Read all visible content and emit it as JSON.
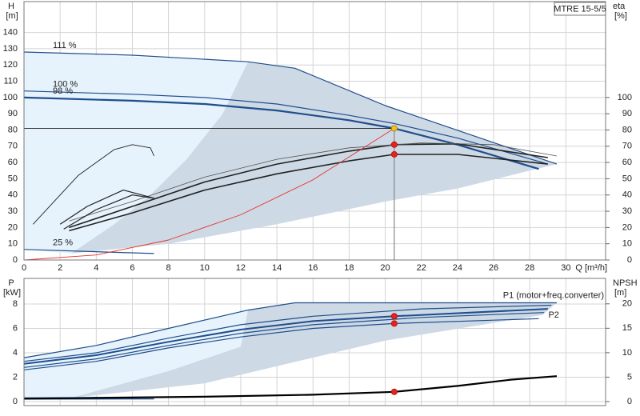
{
  "chart_data": [
    {
      "type": "line",
      "ylabel": "H",
      "yunit": "[m]",
      "y2label": "eta",
      "y2unit": "[%]",
      "xlabel": "Q [m³/h]",
      "box_label": "MTRE 15-5/5",
      "xlim": [
        0,
        32.2
      ],
      "xticks": [
        0,
        2,
        4,
        6,
        8,
        10,
        12,
        14,
        16,
        18,
        20,
        22,
        24,
        26,
        28,
        30
      ],
      "x_tick_labels": true,
      "ylim": [
        0,
        159
      ],
      "yticks": [
        0,
        10,
        20,
        30,
        40,
        50,
        60,
        70,
        80,
        90,
        100,
        110,
        120,
        130,
        140
      ],
      "y2lim": [
        0,
        159
      ],
      "y2ticks": [
        0,
        10,
        20,
        30,
        40,
        50,
        60,
        70,
        80,
        90,
        100
      ],
      "grid": true,
      "series": [
        {
          "style": "polygon",
          "color": "#e6f2fc",
          "x": [
            0,
            12.4,
            11,
            9,
            7,
            5,
            2.6,
            0
          ],
          "values": [
            128,
            122,
            90,
            62,
            40,
            22,
            4,
            6.5
          ]
        },
        {
          "style": "polygon",
          "color": "#cdd9e5",
          "x": [
            2.6,
            5,
            7,
            9,
            11,
            12.4,
            15,
            20,
            25,
            29.5,
            28,
            24,
            20,
            14,
            8
          ],
          "values": [
            4,
            22,
            40,
            62,
            90,
            122,
            118,
            95,
            76,
            59,
            55,
            44,
            36,
            22,
            10
          ]
        },
        {
          "name": "111 %",
          "label_at": "start",
          "style": "line",
          "color": "#1f4e8c",
          "width": 1.2,
          "x": [
            0,
            6,
            12.4,
            15,
            20,
            25,
            29.5
          ],
          "values": [
            128,
            126,
            122,
            118,
            95,
            76,
            59
          ]
        },
        {
          "name": "100 %",
          "label_at": "start",
          "style": "line",
          "color": "#1f4e8c",
          "width": 1.2,
          "x": [
            0,
            6,
            10,
            14,
            18,
            20.5,
            24,
            29
          ],
          "values": [
            104,
            102,
            100,
            96,
            89,
            84,
            75,
            59
          ]
        },
        {
          "name": "98 %",
          "label_at": "start",
          "style": "line",
          "color": "#1f4e8c",
          "width": 2.2,
          "x": [
            0,
            6,
            10,
            14,
            18,
            20.5,
            24,
            28.5
          ],
          "values": [
            100,
            98,
            96,
            92,
            86,
            81,
            71,
            56
          ]
        },
        {
          "name": "25 %",
          "label_at": "start",
          "style": "line",
          "color": "#1f4e8c",
          "width": 1.2,
          "x": [
            0,
            7.2
          ],
          "values": [
            6.5,
            4
          ]
        },
        {
          "style": "line",
          "color": "#222222",
          "width": 1.6,
          "x": [
            2.5,
            6,
            10,
            14,
            18,
            20.5,
            24,
            29
          ],
          "values": [
            20,
            33,
            48,
            59,
            67,
            71,
            71.5,
            63
          ]
        },
        {
          "style": "line",
          "color": "#222222",
          "width": 1.6,
          "x": [
            2.5,
            6,
            10,
            14,
            18,
            20.5,
            24,
            29
          ],
          "values": [
            18,
            29,
            43,
            53,
            61,
            65,
            65,
            59
          ]
        },
        {
          "style": "line",
          "color": "#555555",
          "width": 0.8,
          "x": [
            2.5,
            6,
            10,
            14,
            18,
            22,
            26,
            29.5
          ],
          "values": [
            24,
            36,
            51,
            62,
            69,
            72,
            71,
            64
          ]
        },
        {
          "style": "line",
          "color": "#222222",
          "width": 0.9,
          "x": [
            0.5,
            2,
            3,
            5,
            6,
            7,
            7.2
          ],
          "values": [
            22,
            40,
            52,
            68,
            71,
            69,
            64
          ]
        },
        {
          "style": "line",
          "color": "#222222",
          "width": 1.2,
          "x": [
            2,
            3.5,
            5.5,
            7.2
          ],
          "values": [
            22,
            33,
            43,
            38
          ]
        },
        {
          "style": "line",
          "color": "#222222",
          "width": 1.2,
          "x": [
            2.2,
            4,
            6,
            7.2
          ],
          "values": [
            19,
            31,
            40,
            38
          ]
        },
        {
          "style": "line",
          "color": "#e8322a",
          "width": 0.9,
          "x": [
            0,
            4,
            8,
            12,
            16,
            20.5
          ],
          "values": [
            0,
            3.1,
            12.3,
            27.8,
            49.3,
            81
          ]
        },
        {
          "style": "line",
          "color": "#000000",
          "width": 0.8,
          "x": [
            0,
            20.5
          ],
          "values": [
            81,
            81
          ]
        },
        {
          "style": "line",
          "color": "#888888",
          "width": 1.2,
          "x": [
            20.5,
            20.5
          ],
          "values": [
            81,
            0
          ]
        },
        {
          "style": "point",
          "color": "#f2c21b",
          "x": [
            20.5
          ],
          "values": [
            81
          ]
        },
        {
          "style": "point",
          "color": "#e8221a",
          "x": [
            20.5,
            20.5
          ],
          "values": [
            71,
            65
          ]
        }
      ]
    },
    {
      "type": "line",
      "ylabel": "P",
      "yunit": "[kW]",
      "y2label": "NPSH",
      "y2unit": "[m]",
      "xlim": [
        0,
        32.2
      ],
      "xticks": [
        0,
        2,
        4,
        6,
        8,
        10,
        12,
        14,
        16,
        18,
        20,
        22,
        24,
        26,
        28,
        30
      ],
      "x_tick_labels": false,
      "ylim": [
        -0.33,
        10.1
      ],
      "yticks": [
        0,
        2,
        4,
        6,
        8
      ],
      "y2lim": [
        -0.82,
        25.2
      ],
      "y2ticks": [
        0,
        5,
        10,
        15,
        20
      ],
      "grid": true,
      "series": [
        {
          "style": "polygon",
          "color": "#e6f2fc",
          "x": [
            0,
            4,
            8,
            12.4,
            12,
            8,
            2.6,
            0
          ],
          "values": [
            3.6,
            4.6,
            6.0,
            7.5,
            4.5,
            2.5,
            0.3,
            0.3
          ]
        },
        {
          "style": "polygon",
          "color": "#cdd9e5",
          "x": [
            2.6,
            8,
            12,
            12.4,
            15,
            29.5,
            28.7,
            20,
            10
          ],
          "values": [
            0.3,
            2.5,
            4.5,
            7.5,
            8.1,
            8.1,
            7.1,
            5.0,
            1.5
          ]
        },
        {
          "name": "P1 (motor+freq.converter)",
          "label_at": "end_above",
          "style": "line",
          "color": "#1f4e8c",
          "width": 1.2,
          "x": [
            0,
            4,
            8,
            12.4,
            15,
            29.5
          ],
          "values": [
            3.6,
            4.6,
            6.0,
            7.5,
            8.1,
            8.1
          ]
        },
        {
          "style": "line",
          "color": "#1f4e8c",
          "width": 1.2,
          "x": [
            0,
            4,
            8,
            12,
            16,
            22,
            29.2
          ],
          "values": [
            3.3,
            4.0,
            5.2,
            6.3,
            7.0,
            7.6,
            7.9
          ]
        },
        {
          "style": "line",
          "color": "#1f4e8c",
          "width": 2,
          "x": [
            0,
            4,
            8,
            12,
            16,
            20.5,
            29
          ],
          "values": [
            3.1,
            3.8,
            4.9,
            5.9,
            6.6,
            7.0,
            7.6
          ]
        },
        {
          "name": "P2",
          "label_at": "end",
          "style": "line",
          "color": "#1f4e8c",
          "width": 1.2,
          "x": [
            0,
            4,
            8,
            12,
            16,
            20.5,
            28.5
          ],
          "values": [
            2.6,
            3.3,
            4.4,
            5.3,
            6.0,
            6.4,
            6.8
          ]
        },
        {
          "style": "line",
          "color": "#1f4e8c",
          "width": 1.2,
          "x": [
            0,
            4,
            8,
            12,
            16,
            22,
            28.8
          ],
          "values": [
            2.8,
            3.5,
            4.6,
            5.6,
            6.3,
            6.9,
            7.3
          ]
        },
        {
          "style": "line",
          "color": "#1f4e8c",
          "width": 1.2,
          "x": [
            0,
            7.2
          ],
          "values": [
            0.3,
            0.35
          ]
        },
        {
          "style": "line",
          "color": "#1f4e8c",
          "width": 1.2,
          "x": [
            0,
            7.2
          ],
          "values": [
            0.2,
            0.22
          ]
        },
        {
          "style": "line",
          "axis": "y2",
          "color": "#000000",
          "width": 2.2,
          "x": [
            0,
            10,
            16,
            20.5,
            24,
            27,
            29.5
          ],
          "values": [
            0.6,
            1.0,
            1.4,
            2.0,
            3.2,
            4.5,
            5.2
          ]
        },
        {
          "style": "point",
          "color": "#e8221a",
          "x": [
            20.5,
            20.5
          ],
          "values": [
            7.0,
            6.4
          ]
        },
        {
          "style": "point",
          "axis": "y2",
          "color": "#e8221a",
          "x": [
            20.5
          ],
          "values": [
            2.0
          ]
        }
      ]
    }
  ]
}
